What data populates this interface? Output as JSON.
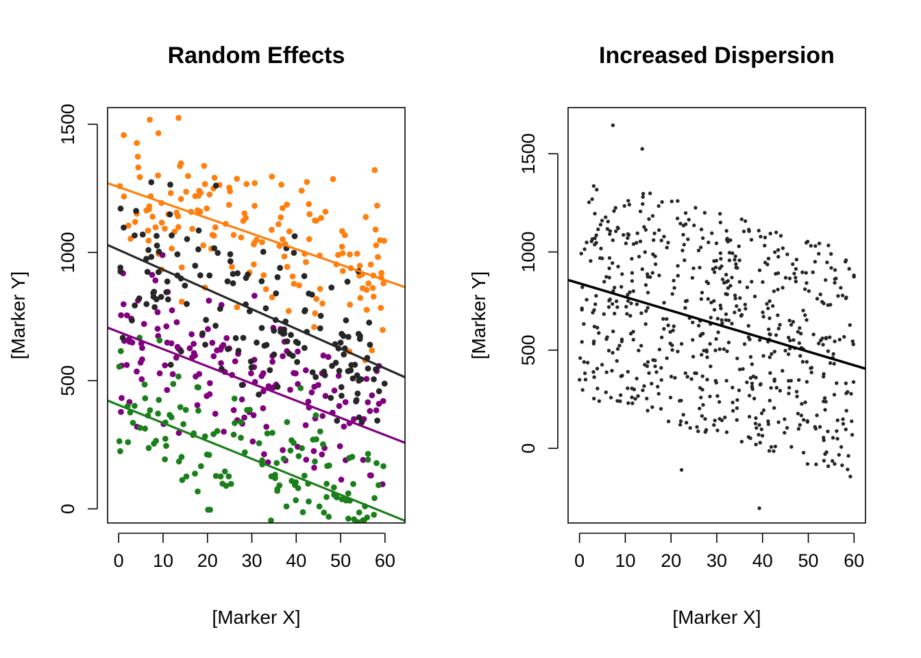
{
  "chart_data": [
    {
      "type": "scatter",
      "title": "Random Effects",
      "xlabel": "[Marker X]",
      "ylabel": "[Marker Y]",
      "xlim": [
        -2.5,
        64.5
      ],
      "ylim": [
        -55,
        1565
      ],
      "xticks": [
        0,
        10,
        20,
        30,
        40,
        50,
        60
      ],
      "yticks": [
        0,
        500,
        1000,
        1500
      ],
      "grid": false,
      "legend": "none",
      "colors": {
        "orange": "#ff7f0e",
        "black": "#262626",
        "purple": "#800080",
        "green": "#1a7f1a"
      },
      "series": [
        {
          "color": "#ff7f0e",
          "fit_line": {
            "intercept": 1255,
            "slope": -6.05
          },
          "n_points": 160,
          "scatter_sd": 150,
          "pinned_points": [
            [
              13.5,
              1525
            ]
          ]
        },
        {
          "color": "#262626",
          "fit_line": {
            "intercept": 1010,
            "slope": -7.7
          },
          "n_points": 160,
          "scatter_sd": 150,
          "pinned_points": []
        },
        {
          "color": "#800080",
          "fit_line": {
            "intercept": 690,
            "slope": -6.7
          },
          "n_points": 160,
          "scatter_sd": 140,
          "pinned_points": []
        },
        {
          "color": "#1a7f1a",
          "fit_line": {
            "intercept": 405,
            "slope": -7.0
          },
          "n_points": 150,
          "scatter_sd": 145,
          "pinned_points": []
        }
      ]
    },
    {
      "type": "scatter",
      "title": "Increased Dispersion",
      "xlabel": "[Marker X]",
      "ylabel": "[Marker Y]",
      "xlim": [
        -2.5,
        62.5
      ],
      "ylim": [
        -380,
        1735
      ],
      "xticks": [
        0,
        10,
        20,
        30,
        40,
        50,
        60
      ],
      "yticks": [
        0,
        500,
        1000,
        1500
      ],
      "grid": false,
      "legend": "none",
      "point_color": "#262626",
      "fit_line": {
        "intercept": 840,
        "slope": -6.95
      },
      "n_points": 640,
      "scatter_sd": 370,
      "pinned_points": [
        [
          7.3,
          1645
        ],
        [
          13.7,
          1525
        ],
        [
          39.3,
          -305
        ],
        [
          22.3,
          -110
        ]
      ]
    }
  ]
}
